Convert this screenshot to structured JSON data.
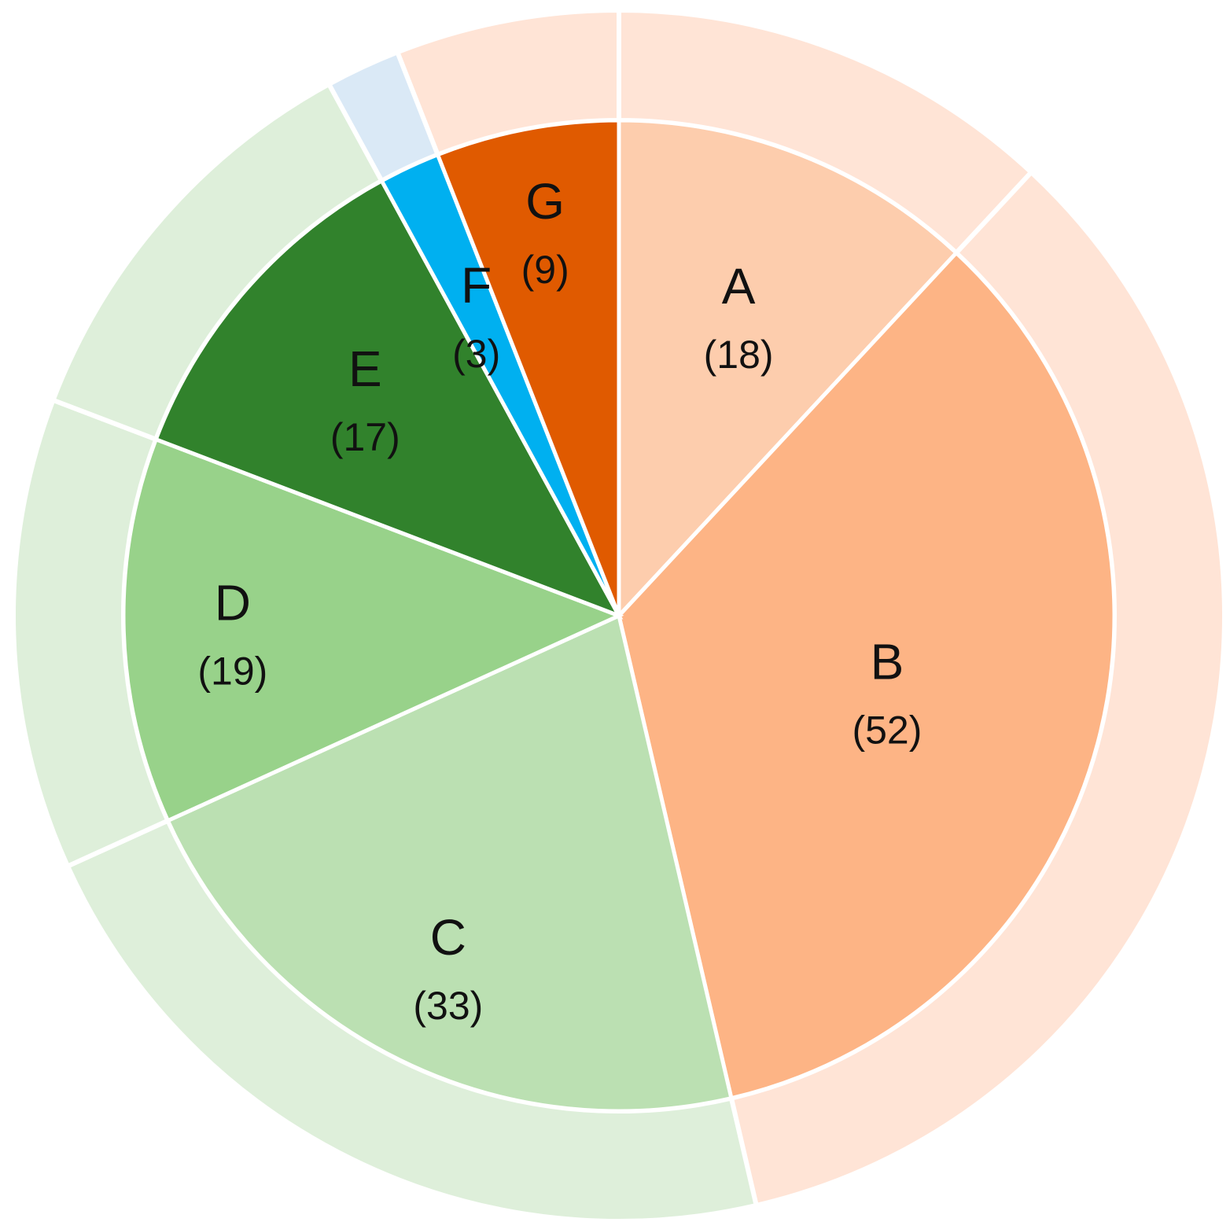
{
  "chart_data": {
    "type": "pie",
    "style": "nested-donut",
    "slices": [
      {
        "label": "A",
        "count_text": "(18)",
        "value": 18,
        "group": "orange",
        "color": "#FDCDAD"
      },
      {
        "label": "B",
        "count_text": "(52)",
        "value": 52,
        "group": "orange",
        "color": "#FDB485"
      },
      {
        "label": "C",
        "count_text": "(33)",
        "value": 33,
        "group": "green",
        "color": "#BBE0B2"
      },
      {
        "label": "D",
        "count_text": "(19)",
        "value": 19,
        "group": "green",
        "color": "#98D28A"
      },
      {
        "label": "E",
        "count_text": "(17)",
        "value": 17,
        "group": "green",
        "color": "#31822C"
      },
      {
        "label": "F",
        "count_text": "(3)",
        "value": 3,
        "group": "blue",
        "color": "#00B0F0"
      },
      {
        "label": "G",
        "count_text": "(9)",
        "value": 9,
        "group": "orange",
        "color": "#E05A00"
      }
    ],
    "outer_ring": [
      {
        "group": "orange",
        "value": 79,
        "color": "#FFE4D6"
      },
      {
        "group": "green",
        "value": 69,
        "color": "#DEEFDA"
      },
      {
        "group": "blue",
        "value": 3,
        "color": "#DAE9F6"
      }
    ],
    "start": "12 o'clock",
    "direction": "clockwise",
    "legend": "none"
  }
}
